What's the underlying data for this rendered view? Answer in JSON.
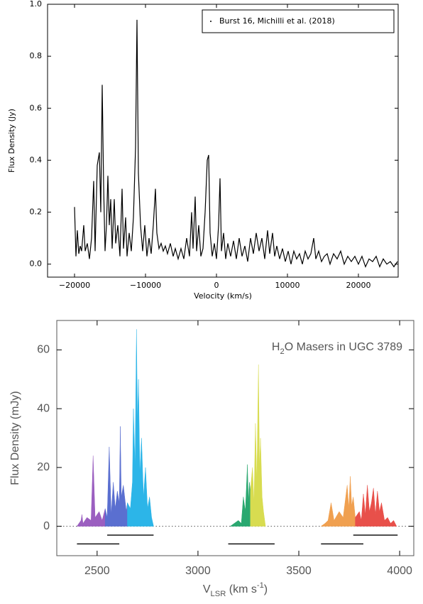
{
  "chart_data": [
    {
      "type": "line",
      "xlabel": "Velocity (km/s)",
      "ylabel": "Flux Density (Jy)",
      "legend": "upper right",
      "xlim": [
        -23800,
        25600
      ],
      "ylim": [
        -0.05,
        1.0
      ],
      "xticks": [
        {
          "value": -20000,
          "label": "−20000"
        },
        {
          "value": -10000,
          "label": "−10000"
        },
        0,
        10000,
        20000
      ],
      "yticks": [
        {
          "value": 0,
          "label": "0.0"
        },
        0.2,
        0.4,
        0.6,
        0.8,
        {
          "value": 1,
          "label": "1.0"
        }
      ],
      "series": [
        {
          "name": "Burst 16, Michilli et al. (2018)",
          "color": "#000000",
          "x": [
            -20000,
            -19800,
            -19600,
            -19400,
            -19200,
            -19000,
            -18700,
            -18500,
            -18200,
            -17900,
            -17600,
            -17300,
            -17100,
            -16800,
            -16500,
            -16300,
            -16100,
            -15900,
            -15700,
            -15500,
            -15300,
            -15100,
            -14900,
            -14700,
            -14400,
            -14200,
            -13900,
            -13600,
            -13300,
            -13100,
            -12800,
            -12600,
            -12300,
            -12000,
            -11700,
            -11400,
            -11200,
            -11000,
            -10700,
            -10400,
            -10100,
            -9800,
            -9500,
            -9200,
            -8900,
            -8600,
            -8400,
            -8100,
            -7800,
            -7500,
            -7200,
            -6900,
            -6500,
            -6100,
            -5800,
            -5400,
            -5000,
            -4600,
            -4200,
            -3800,
            -3500,
            -3300,
            -3000,
            -2800,
            -2500,
            -2200,
            -1900,
            -1600,
            -1300,
            -1100,
            -900,
            -600,
            -300,
            0,
            300,
            500,
            700,
            1000,
            1300,
            1600,
            2000,
            2400,
            2800,
            3200,
            3600,
            4000,
            4400,
            4800,
            5200,
            5600,
            6000,
            6400,
            6800,
            7200,
            7500,
            7900,
            8200,
            8500,
            8900,
            9300,
            9700,
            10100,
            10500,
            10900,
            11300,
            11700,
            12100,
            12500,
            12900,
            13300,
            13700,
            14000,
            14400,
            14800,
            15200,
            15600,
            16000,
            16500,
            17000,
            17500,
            18000,
            18500,
            19000,
            19500,
            20000,
            20500,
            21000,
            21500,
            22000,
            22500,
            23000,
            23500,
            24000,
            24500,
            25000,
            25500
          ],
          "values": [
            0.22,
            0.03,
            0.13,
            0.04,
            0.07,
            0.05,
            0.15,
            0.05,
            0.08,
            0.02,
            0.1,
            0.32,
            0.05,
            0.38,
            0.43,
            0.2,
            0.69,
            0.3,
            0.05,
            0.15,
            0.34,
            0.15,
            0.25,
            0.06,
            0.25,
            0.08,
            0.15,
            0.03,
            0.29,
            0.06,
            0.18,
            0.03,
            0.12,
            0.05,
            0.18,
            0.45,
            0.94,
            0.35,
            0.15,
            0.05,
            0.15,
            0.03,
            0.1,
            0.04,
            0.15,
            0.29,
            0.12,
            0.06,
            0.08,
            0.05,
            0.07,
            0.04,
            0.08,
            0.03,
            0.06,
            0.02,
            0.06,
            0.02,
            0.1,
            0.03,
            0.2,
            0.06,
            0.26,
            0.05,
            0.15,
            0.03,
            0.06,
            0.2,
            0.4,
            0.42,
            0.12,
            0.03,
            0.08,
            0.02,
            0.15,
            0.33,
            0.05,
            0.12,
            0.02,
            0.08,
            0.03,
            0.09,
            0.02,
            0.1,
            0.03,
            0.07,
            0.01,
            0.1,
            0.04,
            0.12,
            0.05,
            0.1,
            0.02,
            0.13,
            0.04,
            0.12,
            0.03,
            0.07,
            0.02,
            0.06,
            0.01,
            0.05,
            0.0,
            0.05,
            0.02,
            0.04,
            0.0,
            0.05,
            0.02,
            0.04,
            0.1,
            0.02,
            0.05,
            0.01,
            0.03,
            0.04,
            0.0,
            0.04,
            0.02,
            0.05,
            0.0,
            0.03,
            0.01,
            0.03,
            0.0,
            0.03,
            -0.01,
            0.02,
            0.01,
            0.03,
            -0.01,
            0.02,
            0.0,
            0.01,
            -0.01,
            0.01
          ]
        }
      ]
    },
    {
      "type": "area",
      "annotation": [
        {
          "text": "H"
        },
        {
          "text": "2",
          "shift": "sub"
        },
        {
          "text": "O Masers in UGC 3789"
        }
      ],
      "xlabel": [
        {
          "text": "V"
        },
        {
          "text": "LSR",
          "shift": "sub"
        },
        {
          "text": " (km s"
        },
        {
          "text": "-1",
          "shift": "super"
        },
        {
          "text": ")"
        }
      ],
      "ylabel": "Flux Density (mJy)",
      "xlim": [
        2300,
        4070
      ],
      "ylim": [
        -10,
        70
      ],
      "xticks": [
        2500,
        3000,
        3500,
        4000
      ],
      "yticks": [
        0,
        20,
        40,
        60
      ],
      "zero_line": true,
      "series": [
        {
          "color": "#9b5fc0",
          "x": [
            2400,
            2420,
            2425,
            2430,
            2450,
            2470,
            2480,
            2490,
            2510,
            2525,
            2540
          ],
          "values": [
            0,
            2,
            4,
            1,
            3,
            2,
            24,
            3,
            5,
            2,
            6
          ]
        },
        {
          "color": "#5a6fd0",
          "x": [
            2540,
            2550,
            2560,
            2570,
            2580,
            2590,
            2600,
            2610,
            2615,
            2620,
            2630,
            2645,
            2650
          ],
          "values": [
            6,
            3,
            27,
            4,
            15,
            6,
            12,
            8,
            34,
            10,
            14,
            5,
            8
          ]
        },
        {
          "color": "#2cb5e8",
          "x": [
            2650,
            2665,
            2675,
            2680,
            2688,
            2695,
            2700,
            2705,
            2712,
            2720,
            2730,
            2740,
            2750,
            2760,
            2770,
            2780
          ],
          "values": [
            8,
            6,
            15,
            40,
            20,
            67,
            35,
            50,
            18,
            30,
            10,
            20,
            6,
            10,
            3,
            0
          ]
        },
        {
          "color": "#2aa870",
          "x": [
            3160,
            3180,
            3200,
            3215,
            3225,
            3235,
            3245,
            3250,
            3255,
            3260
          ],
          "values": [
            0,
            1,
            2,
            1,
            10,
            5,
            21,
            8,
            15,
            12
          ]
        },
        {
          "color": "#d8dc50",
          "x": [
            3260,
            3270,
            3278,
            3285,
            3292,
            3300,
            3305,
            3310,
            3318,
            3325,
            3335
          ],
          "values": [
            12,
            20,
            8,
            35,
            15,
            55,
            20,
            30,
            10,
            5,
            0
          ]
        },
        {
          "color": "#f0a050",
          "x": [
            3610,
            3630,
            3645,
            3660,
            3675,
            3700,
            3720,
            3740,
            3748,
            3755,
            3762,
            3770,
            3780
          ],
          "values": [
            0,
            1,
            2,
            8,
            2,
            5,
            3,
            14,
            6,
            17,
            7,
            10,
            3
          ]
        },
        {
          "color": "#e8504a",
          "x": [
            3780,
            3800,
            3810,
            3820,
            3830,
            3840,
            3850,
            3860,
            3870,
            3880,
            3890,
            3900,
            3910,
            3925,
            3940,
            3955,
            3970,
            3985
          ],
          "values": [
            3,
            5,
            2,
            11,
            4,
            14,
            5,
            8,
            13,
            4,
            12,
            5,
            8,
            2,
            3,
            1,
            2,
            0
          ]
        }
      ],
      "bars": [
        {
          "x": [
            2400,
            2610
          ],
          "y": -6
        },
        {
          "x": [
            2550,
            2780
          ],
          "y": -3
        },
        {
          "x": [
            3150,
            3380
          ],
          "y": -6
        },
        {
          "x": [
            3610,
            3820
          ],
          "y": -6
        },
        {
          "x": [
            3770,
            3990
          ],
          "y": -3
        }
      ]
    }
  ]
}
